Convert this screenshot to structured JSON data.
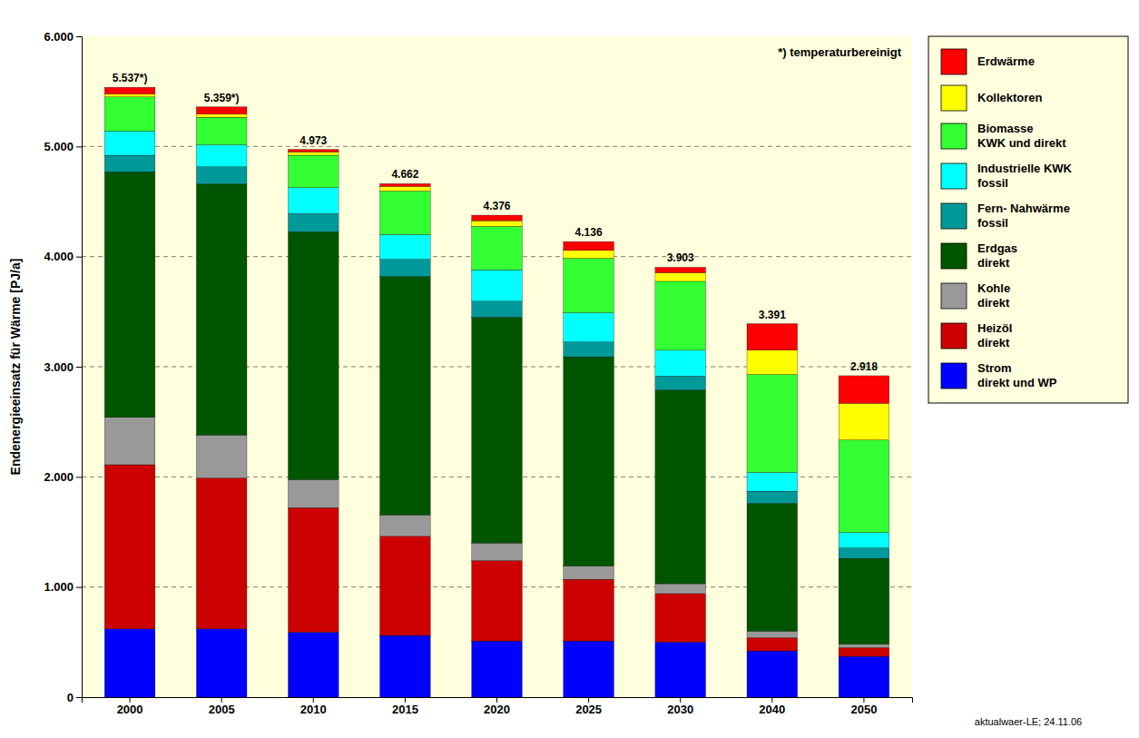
{
  "chart_data": {
    "type": "bar",
    "stacked": true,
    "categories": [
      "2000",
      "2005",
      "2010",
      "2015",
      "2020",
      "2025",
      "2030",
      "2040",
      "2050"
    ],
    "series": [
      {
        "name": "Strom\ndirekt und WP",
        "color": "#0000FF",
        "values": [
          620,
          620,
          590,
          560,
          510,
          510,
          500,
          420,
          370
        ]
      },
      {
        "name": "Heizöl\ndirekt",
        "color": "#CC0000",
        "values": [
          1490,
          1370,
          1130,
          900,
          730,
          560,
          440,
          120,
          80
        ]
      },
      {
        "name": "Kohle\ndirekt",
        "color": "#999999",
        "values": [
          430,
          390,
          255,
          195,
          160,
          120,
          90,
          60,
          30
        ]
      },
      {
        "name": "Erdgas\ndirekt",
        "color": "#005500",
        "values": [
          2230,
          2280,
          2250,
          2165,
          2050,
          1900,
          1760,
          1160,
          780
        ]
      },
      {
        "name": "Fern- Nahwärme\nfossil",
        "color": "#009999",
        "values": [
          150,
          155,
          165,
          155,
          145,
          135,
          125,
          110,
          95
        ]
      },
      {
        "name": "Industrielle KWK\nfossil",
        "color": "#00FFFF",
        "values": [
          220,
          200,
          235,
          225,
          285,
          265,
          235,
          170,
          140
        ]
      },
      {
        "name": "Biomasse\nKWK und direkt",
        "color": "#33FF33",
        "values": [
          310,
          250,
          295,
          395,
          395,
          495,
          625,
          890,
          840
        ]
      },
      {
        "name": "Kollektoren",
        "color": "#FFFF00",
        "values": [
          27,
          29,
          30,
          42,
          51,
          71,
          78,
          221,
          333
        ]
      },
      {
        "name": "Erdwärme",
        "color": "#FF0000",
        "values": [
          60,
          65,
          23,
          25,
          50,
          80,
          50,
          240,
          250
        ]
      }
    ],
    "totals": {
      "values": [
        5537,
        5359,
        4973,
        4662,
        4376,
        4136,
        3903,
        3391,
        2918
      ],
      "value_labels": [
        "5.537*)",
        "5.359*)",
        "4.973",
        "4.662",
        "4.376",
        "4.136",
        "3.903",
        "3.391",
        "2.918"
      ]
    },
    "y_label": "Endenergieeinsatz für Wärme [PJ/a]",
    "annotations": [
      "*) temperaturbereinigt",
      "aktualwaer-LE; 24.11.06"
    ],
    "ylim": [
      0,
      6000
    ],
    "yticks": [
      0,
      {
        "value": 1000,
        "label": "1.000"
      },
      {
        "value": 2000,
        "label": "2.000"
      },
      {
        "value": 3000,
        "label": "3.000"
      },
      {
        "value": 4000,
        "label": "4.000"
      },
      {
        "value": 5000,
        "label": "5.000"
      },
      {
        "value": 6000,
        "label": "6.000"
      }
    ],
    "grid": true,
    "legend": "right"
  }
}
